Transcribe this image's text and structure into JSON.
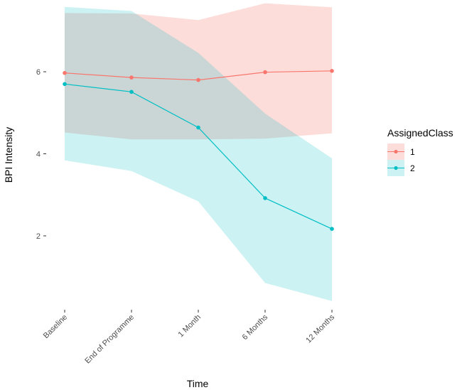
{
  "chart_data": {
    "type": "line",
    "title": "",
    "xlabel": "Time",
    "ylabel": "BPI Intensity",
    "categories": [
      "Baseline",
      "End of Programme",
      "1 Month",
      "6 Months",
      "12 Months"
    ],
    "yticks": [
      2,
      4,
      6
    ],
    "ytick_labels": [
      "2",
      "4",
      "6"
    ],
    "ylim": [
      0.2,
      7.7
    ],
    "grid": false,
    "legend": {
      "title": "AssignedClass",
      "placement": "right"
    },
    "series": [
      {
        "name": "1",
        "color": "#F8766D",
        "values": [
          5.97,
          5.86,
          5.8,
          5.99,
          6.02
        ],
        "lower": [
          4.52,
          4.35,
          4.35,
          4.37,
          4.5
        ],
        "upper": [
          7.43,
          7.42,
          7.26,
          7.67,
          7.57
        ]
      },
      {
        "name": "2",
        "color": "#00BFC4",
        "values": [
          5.7,
          5.51,
          4.64,
          2.92,
          2.17
        ],
        "lower": [
          3.84,
          3.58,
          2.84,
          0.85,
          0.41
        ],
        "upper": [
          7.58,
          7.48,
          6.46,
          4.98,
          3.89
        ]
      }
    ]
  }
}
